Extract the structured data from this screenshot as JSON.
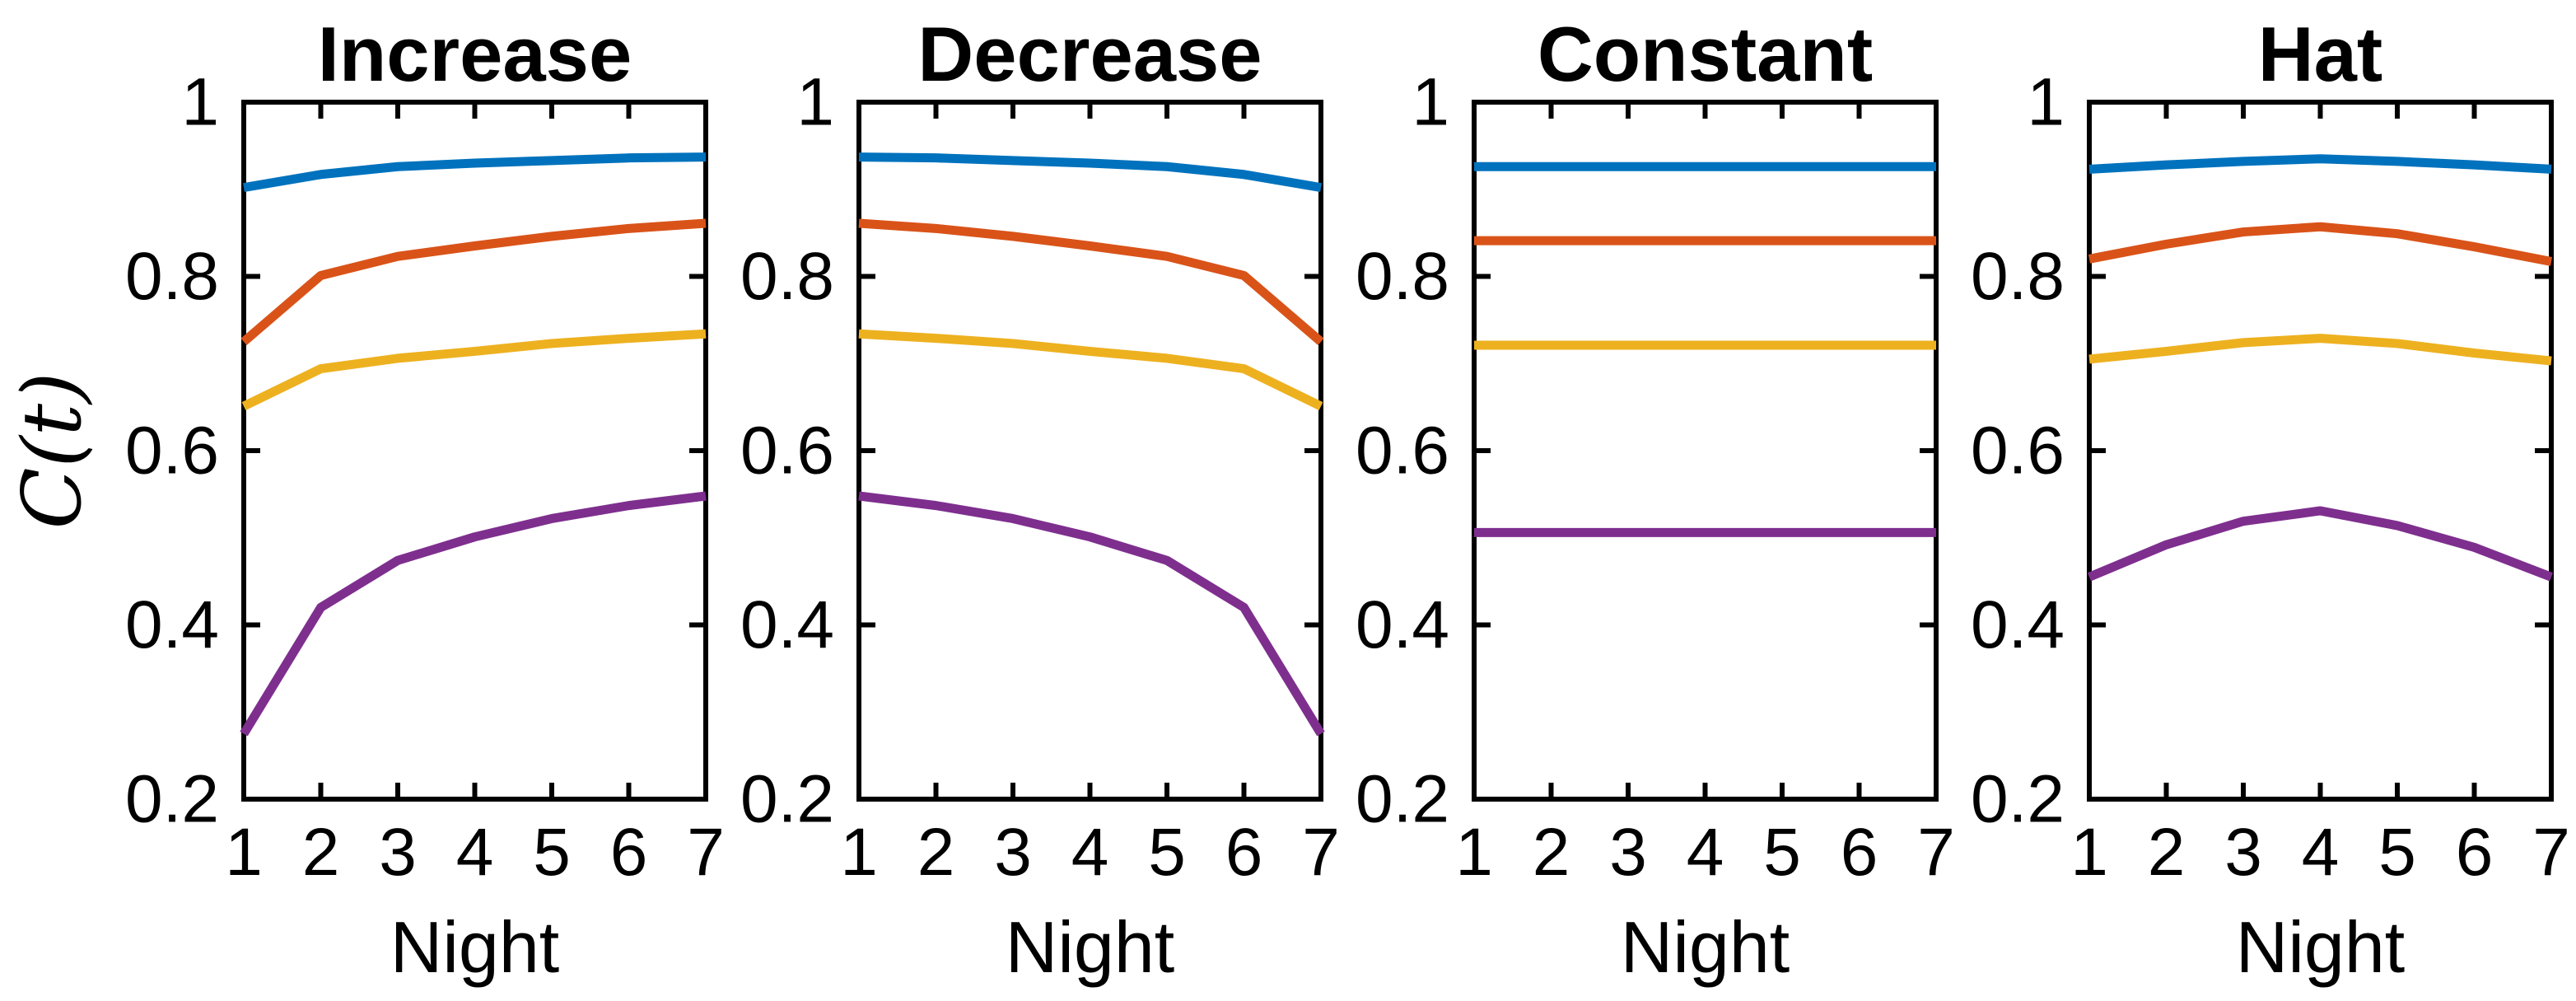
{
  "figure": {
    "background": "#ffffff",
    "axis_color": "#000000",
    "ylabel": "C(t)",
    "xlabel": "Night"
  },
  "chart_data": [
    {
      "type": "line",
      "title": "Increase",
      "xlabel": "Night",
      "ylabel": "C(t)",
      "x": [
        1,
        2,
        3,
        4,
        5,
        6,
        7
      ],
      "xticks": [
        1,
        2,
        3,
        4,
        5,
        6,
        7
      ],
      "yticks": [
        0.2,
        0.4,
        0.6,
        0.8,
        1
      ],
      "ylim": [
        0.2,
        1
      ],
      "grid": false,
      "legend": null,
      "series": [
        {
          "name": "blue",
          "color": "#0072BD",
          "values": [
            0.902,
            0.917,
            0.926,
            0.93,
            0.933,
            0.936,
            0.937
          ]
        },
        {
          "name": "orange",
          "color": "#D95319",
          "values": [
            0.725,
            0.801,
            0.823,
            0.835,
            0.846,
            0.855,
            0.861
          ]
        },
        {
          "name": "yellow",
          "color": "#EDB120",
          "values": [
            0.651,
            0.694,
            0.706,
            0.714,
            0.723,
            0.729,
            0.734
          ]
        },
        {
          "name": "purple",
          "color": "#7E2F8E",
          "values": [
            0.275,
            0.42,
            0.474,
            0.501,
            0.522,
            0.537,
            0.548
          ]
        }
      ]
    },
    {
      "type": "line",
      "title": "Decrease",
      "xlabel": "Night",
      "ylabel": "C(t)",
      "x": [
        1,
        2,
        3,
        4,
        5,
        6,
        7
      ],
      "xticks": [
        1,
        2,
        3,
        4,
        5,
        6,
        7
      ],
      "yticks": [
        0.2,
        0.4,
        0.6,
        0.8,
        1
      ],
      "ylim": [
        0.2,
        1
      ],
      "grid": false,
      "legend": null,
      "series": [
        {
          "name": "blue",
          "color": "#0072BD",
          "values": [
            0.937,
            0.936,
            0.933,
            0.93,
            0.926,
            0.917,
            0.902
          ]
        },
        {
          "name": "orange",
          "color": "#D95319",
          "values": [
            0.861,
            0.855,
            0.846,
            0.835,
            0.823,
            0.801,
            0.725
          ]
        },
        {
          "name": "yellow",
          "color": "#EDB120",
          "values": [
            0.734,
            0.729,
            0.723,
            0.714,
            0.706,
            0.694,
            0.651
          ]
        },
        {
          "name": "purple",
          "color": "#7E2F8E",
          "values": [
            0.548,
            0.537,
            0.522,
            0.501,
            0.474,
            0.42,
            0.275
          ]
        }
      ]
    },
    {
      "type": "line",
      "title": "Constant",
      "xlabel": "Night",
      "ylabel": "C(t)",
      "x": [
        1,
        2,
        3,
        4,
        5,
        6,
        7
      ],
      "xticks": [
        1,
        2,
        3,
        4,
        5,
        6,
        7
      ],
      "yticks": [
        0.2,
        0.4,
        0.6,
        0.8,
        1
      ],
      "ylim": [
        0.2,
        1
      ],
      "grid": false,
      "legend": null,
      "series": [
        {
          "name": "blue",
          "color": "#0072BD",
          "values": [
            0.926,
            0.926,
            0.926,
            0.926,
            0.926,
            0.926,
            0.926
          ]
        },
        {
          "name": "orange",
          "color": "#D95319",
          "values": [
            0.841,
            0.841,
            0.841,
            0.841,
            0.841,
            0.841,
            0.841
          ]
        },
        {
          "name": "yellow",
          "color": "#EDB120",
          "values": [
            0.721,
            0.721,
            0.721,
            0.721,
            0.721,
            0.721,
            0.721
          ]
        },
        {
          "name": "purple",
          "color": "#7E2F8E",
          "values": [
            0.506,
            0.506,
            0.506,
            0.506,
            0.506,
            0.506,
            0.506
          ]
        }
      ]
    },
    {
      "type": "line",
      "title": "Hat",
      "xlabel": "Night",
      "ylabel": "C(t)",
      "x": [
        1,
        2,
        3,
        4,
        5,
        6,
        7
      ],
      "xticks": [
        1,
        2,
        3,
        4,
        5,
        6,
        7
      ],
      "yticks": [
        0.2,
        0.4,
        0.6,
        0.8,
        1
      ],
      "ylim": [
        0.2,
        1
      ],
      "grid": false,
      "legend": null,
      "series": [
        {
          "name": "blue",
          "color": "#0072BD",
          "values": [
            0.923,
            0.928,
            0.932,
            0.935,
            0.932,
            0.928,
            0.923
          ]
        },
        {
          "name": "orange",
          "color": "#D95319",
          "values": [
            0.82,
            0.837,
            0.851,
            0.857,
            0.849,
            0.834,
            0.817
          ]
        },
        {
          "name": "yellow",
          "color": "#EDB120",
          "values": [
            0.705,
            0.714,
            0.724,
            0.729,
            0.723,
            0.712,
            0.703
          ]
        },
        {
          "name": "purple",
          "color": "#7E2F8E",
          "values": [
            0.455,
            0.492,
            0.519,
            0.531,
            0.514,
            0.489,
            0.455
          ]
        }
      ]
    }
  ]
}
